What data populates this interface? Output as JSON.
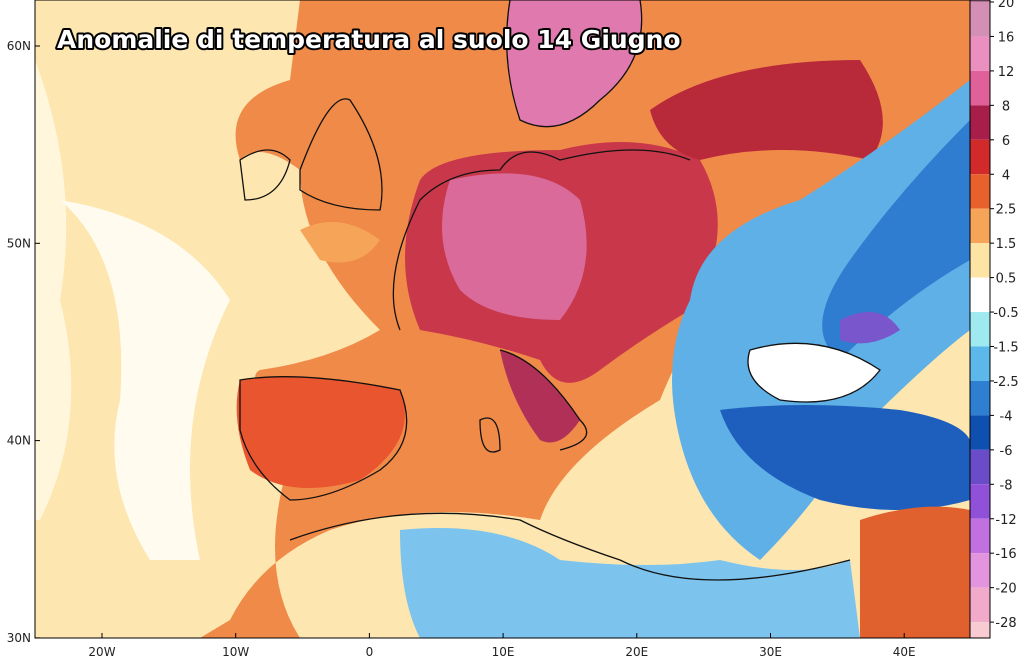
{
  "title": "Anomalie di temperatura al suolo 14 Giugno",
  "lat_labels": [
    "60N",
    "50N",
    "40N",
    "30N"
  ],
  "lon_labels": [
    "20W",
    "10W",
    "0",
    "10E",
    "20E",
    "30E",
    "40E"
  ],
  "colorbar": {
    "top_color": "#a8708e",
    "levels": [
      {
        "label": "20",
        "color": "#d48fb5"
      },
      {
        "label": "16",
        "color": "#ea8fbf"
      },
      {
        "label": "12",
        "color": "#e0609a"
      },
      {
        "label": "8",
        "color": "#a81e4a"
      },
      {
        "label": "6",
        "color": "#d22a2a"
      },
      {
        "label": "4",
        "color": "#e8602c"
      },
      {
        "label": "2.5",
        "color": "#f6a458"
      },
      {
        "label": "1.5",
        "color": "#fde3a4"
      },
      {
        "label": "0.5",
        "color": "#ffffff"
      },
      {
        "label": "-0.5",
        "color": "#9fe9f0"
      },
      {
        "label": "-1.5",
        "color": "#5cb8ea"
      },
      {
        "label": "-2.5",
        "color": "#2e7fd2"
      },
      {
        "label": "-4",
        "color": "#0f4fb0"
      },
      {
        "label": "-6",
        "color": "#6a4cc8"
      },
      {
        "label": "-8",
        "color": "#9150d8"
      },
      {
        "label": "-12",
        "color": "#c070e0"
      },
      {
        "label": "-16",
        "color": "#e294de"
      },
      {
        "label": "-20",
        "color": "#f2aacb"
      },
      {
        "label": "-28",
        "color": "#f8cad2"
      }
    ]
  }
}
